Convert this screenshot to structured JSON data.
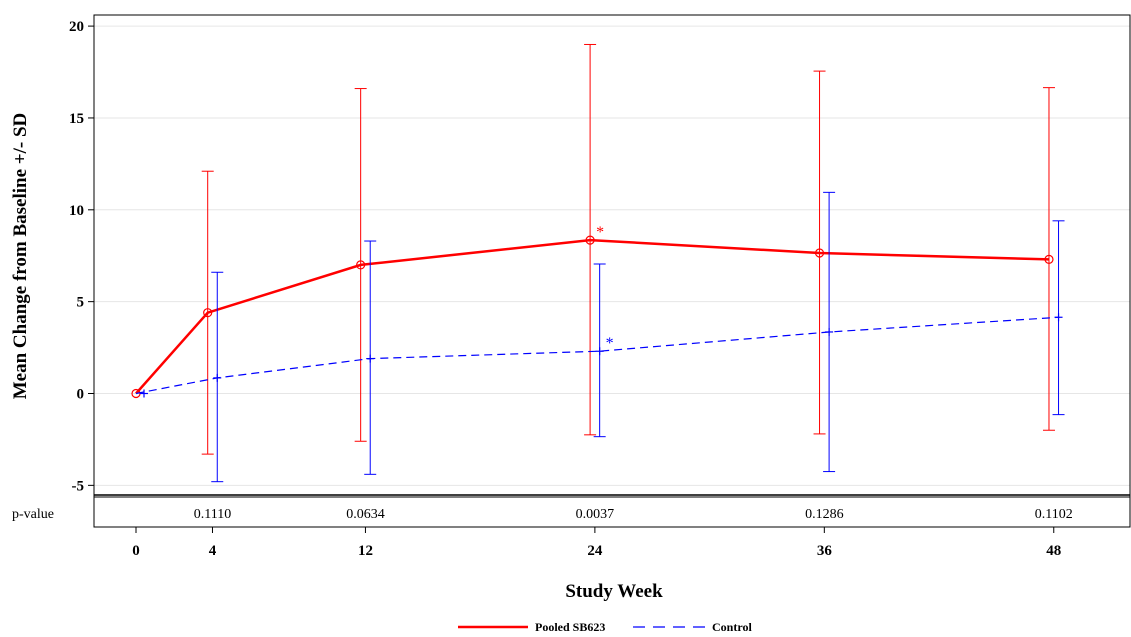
{
  "chart_data": {
    "type": "line",
    "xlabel": "Study Week",
    "ylabel": "Mean Change from Baseline +/- SD",
    "x_ticks": [
      0,
      4,
      12,
      24,
      36,
      48
    ],
    "y_ticks": [
      -5,
      0,
      5,
      10,
      15,
      20
    ],
    "xlim": [
      -1.5,
      50
    ],
    "ylim": [
      -5.5,
      20.5
    ],
    "grid": "horizontal",
    "legend_position": "bottom-center",
    "p_value_label": "p-value",
    "p_values": [
      {
        "week": 4,
        "text": "0.1110"
      },
      {
        "week": 12,
        "text": "0.0634"
      },
      {
        "week": 24,
        "text": "0.0037"
      },
      {
        "week": 36,
        "text": "0.1286"
      },
      {
        "week": 48,
        "text": "0.1102"
      }
    ],
    "significance_marker": "*",
    "series": [
      {
        "name": "Pooled SB623",
        "color": "#ff0000",
        "line_style": "solid",
        "marker": "circle",
        "x": [
          0,
          4,
          12,
          24,
          36,
          48
        ],
        "y": [
          0,
          4.4,
          7.0,
          8.35,
          7.65,
          7.3
        ],
        "err_low": [
          0,
          -3.3,
          -2.6,
          -2.25,
          -2.2,
          -2.0
        ],
        "err_high": [
          0,
          12.1,
          16.6,
          19.0,
          17.55,
          16.65
        ],
        "significant_weeks": [
          24
        ]
      },
      {
        "name": "Control",
        "color": "#0000ff",
        "line_style": "dashed",
        "marker": "plus",
        "x": [
          0,
          4,
          12,
          24,
          36,
          48
        ],
        "y": [
          0,
          0.85,
          1.9,
          2.3,
          3.35,
          4.15
        ],
        "err_low": [
          0,
          -4.8,
          -4.4,
          -2.35,
          -4.25,
          -1.15
        ],
        "err_high": [
          0,
          6.6,
          8.3,
          7.05,
          10.95,
          9.4
        ],
        "significant_weeks": [
          24
        ]
      }
    ]
  }
}
